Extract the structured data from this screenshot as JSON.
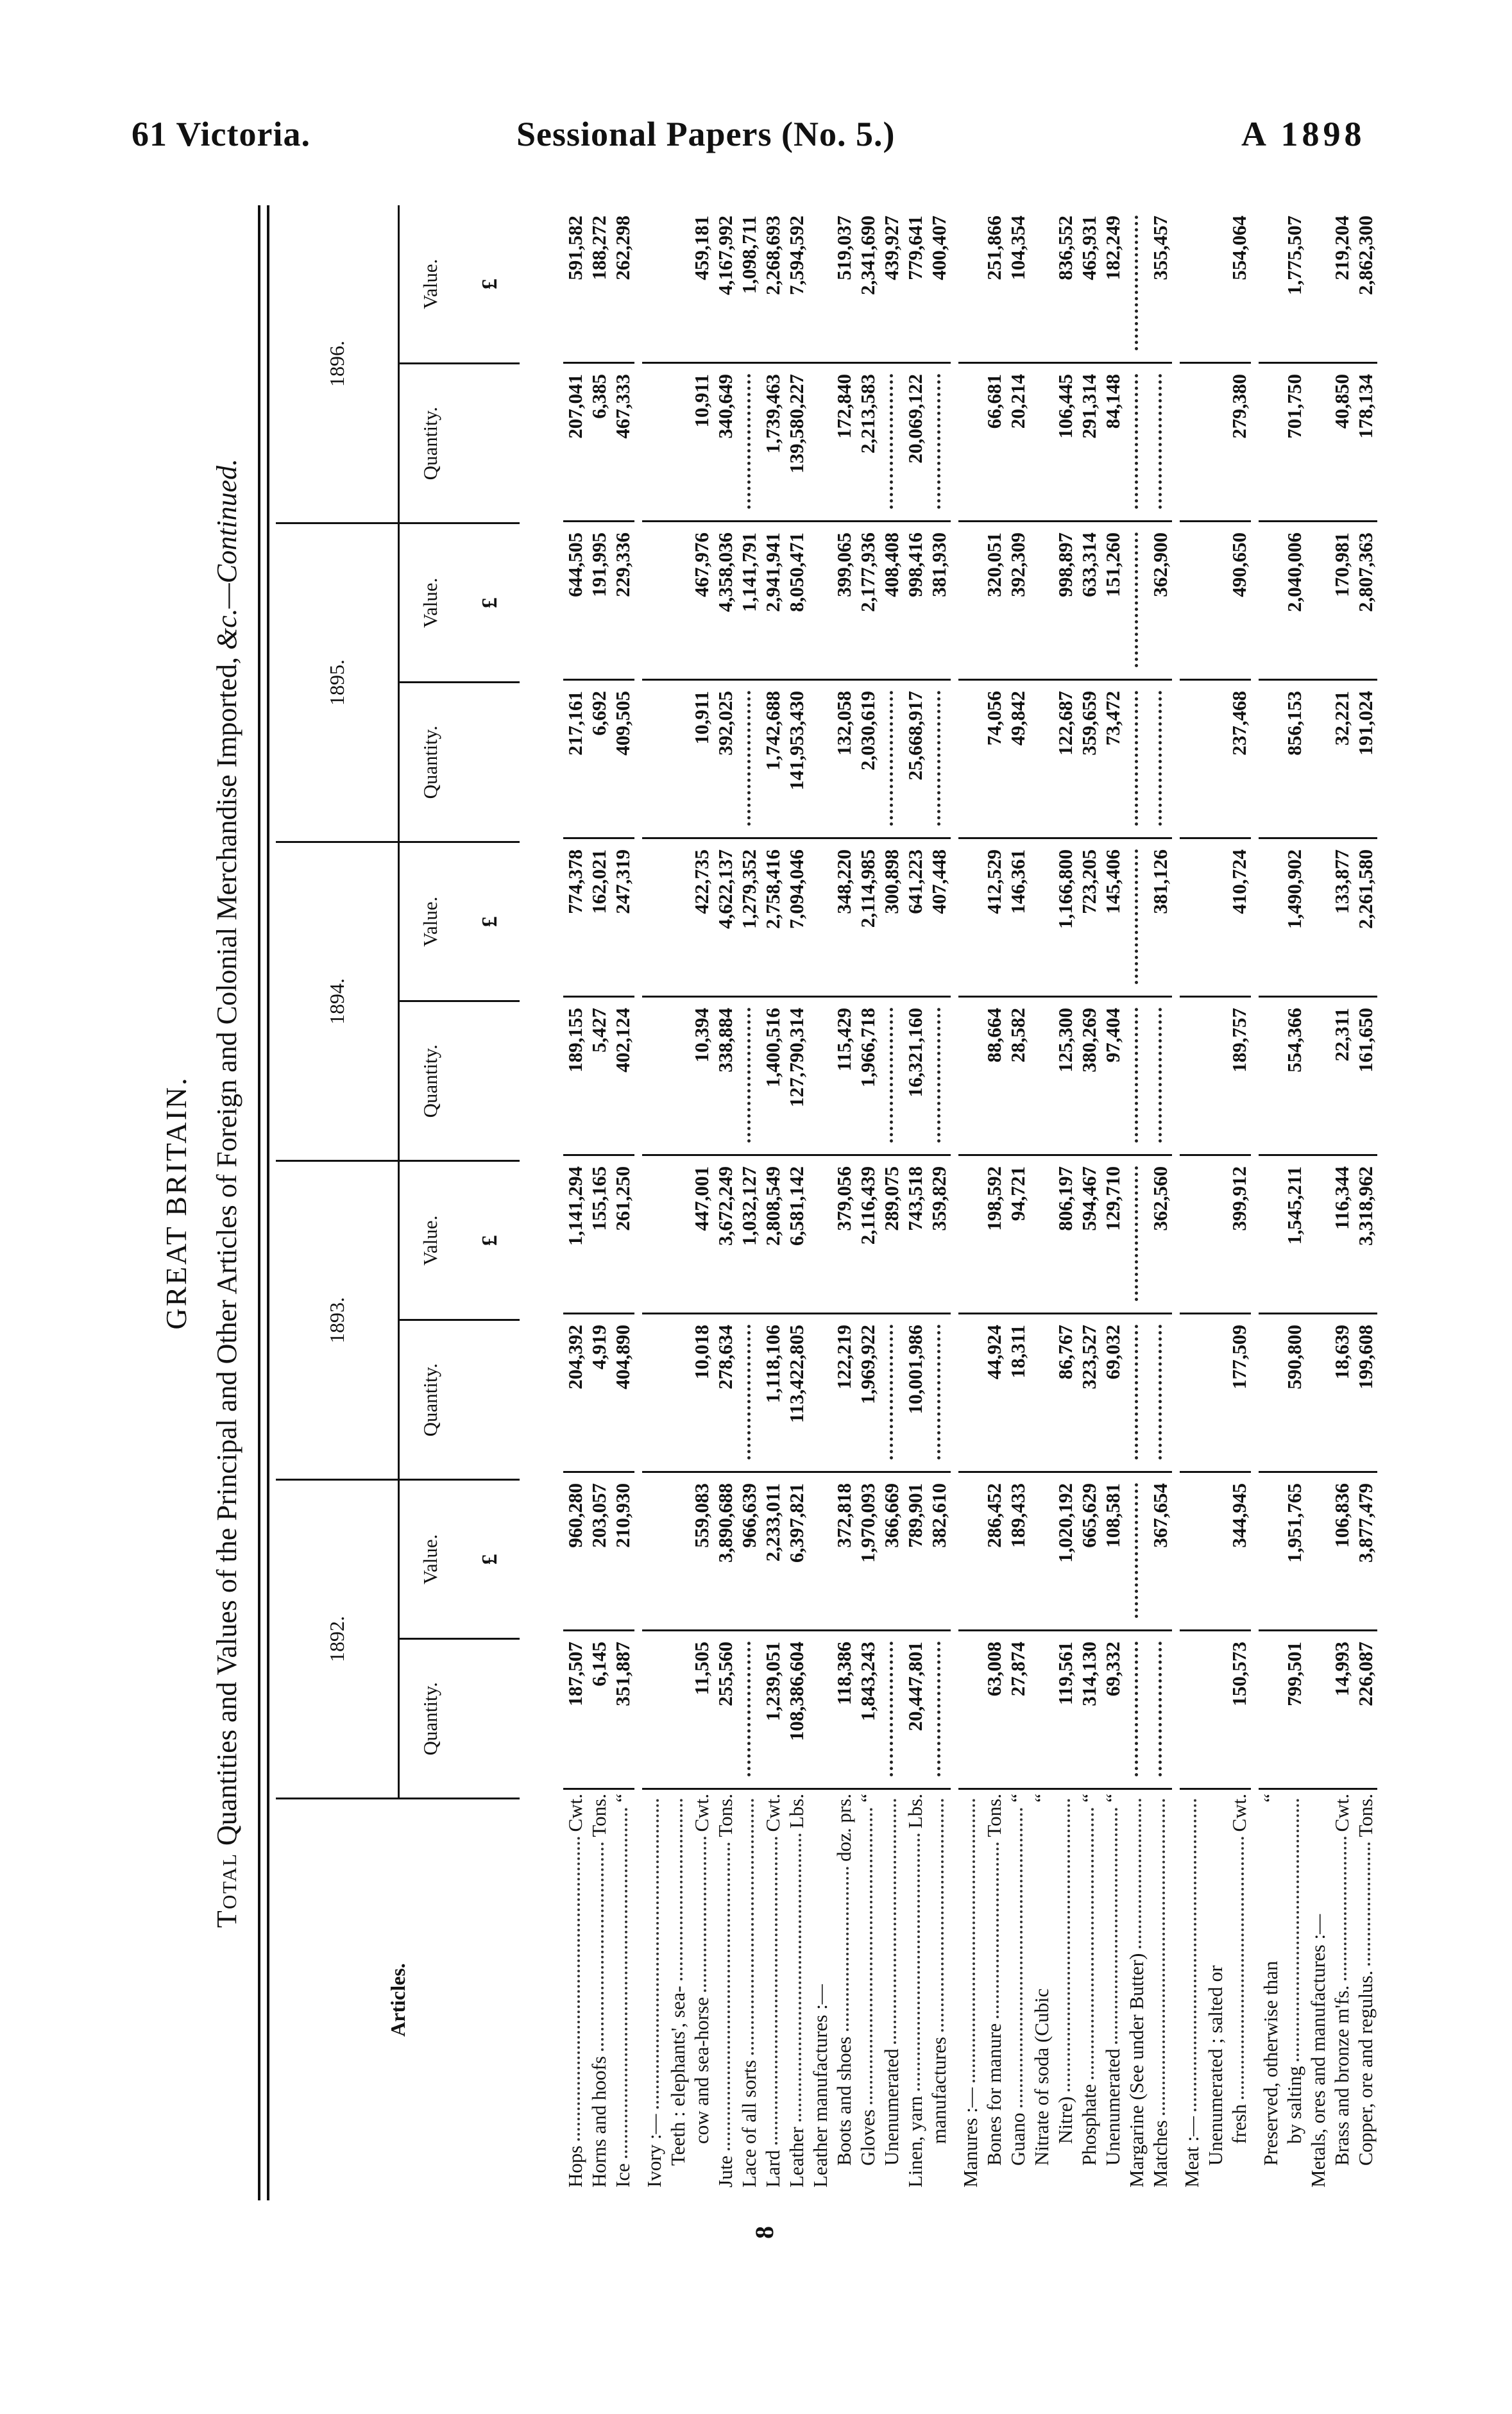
{
  "running_head": {
    "left": "61 Victoria.",
    "center": "Sessional Papers (No. 5.)",
    "right": "A 1898"
  },
  "heading": "GREAT BRITAIN.",
  "title": {
    "smallcaps": "Total",
    "main": " Quantities and Values of the Principal and Other Articles of Foreign and Colonial Merchandise Imported, ",
    "italic": "&c.—Continued."
  },
  "margin_mark": "8",
  "table": {
    "articles_header": "Articles.",
    "years": [
      "1892.",
      "1893.",
      "1894.",
      "1895.",
      "1896."
    ],
    "quantity_label": "Quantity.",
    "value_label": "Value.",
    "currency": "£",
    "rows": [
      {
        "article": "Hops",
        "unit": "Cwt.",
        "q": [
          "187,507",
          "204,392",
          "189,155",
          "217,161",
          "207,041"
        ],
        "v": [
          "960,280",
          "1,141,294",
          "774,378",
          "644,505",
          "591,582"
        ]
      },
      {
        "article": "Horns and hoofs",
        "unit": "Tons.",
        "q": [
          "6,145",
          "4,919",
          "5,427",
          "6,692",
          "6,385"
        ],
        "v": [
          "203,057",
          "155,165",
          "162,021",
          "191,995",
          "188,272"
        ]
      },
      {
        "article": "Ice",
        "unit": "“",
        "q": [
          "351,887",
          "404,890",
          "402,124",
          "409,505",
          "467,333"
        ],
        "v": [
          "210,930",
          "261,250",
          "247,319",
          "229,336",
          "262,298"
        ]
      },
      {
        "article": "Ivory :—",
        "gap": true
      },
      {
        "article": "Teeth : elephants', sea-",
        "indent": 1
      },
      {
        "article": "cow and sea-horse",
        "indent": 2,
        "unit": "Cwt.",
        "q": [
          "11,505",
          "10,018",
          "10,394",
          "10,911",
          "10,911"
        ],
        "v": [
          "559,083",
          "447,001",
          "422,735",
          "467,976",
          "459,181"
        ]
      },
      {
        "article": "Jute",
        "unit": "Tons.",
        "q": [
          "255,560",
          "278,634",
          "338,884",
          "392,025",
          "340,649"
        ],
        "v": [
          "3,890,688",
          "3,672,249",
          "4,622,137",
          "4,358,036",
          "4,167,992"
        ]
      },
      {
        "article": "Lace of all sorts",
        "q_dotted": true,
        "v": [
          "966,639",
          "1,032,127",
          "1,279,352",
          "1,141,791",
          "1,098,711"
        ]
      },
      {
        "article": "Lard",
        "unit": "Cwt.",
        "q": [
          "1,239,051",
          "1,118,106",
          "1,400,516",
          "1,742,688",
          "1,739,463"
        ],
        "v": [
          "2,233,011",
          "2,808,549",
          "2,758,416",
          "2,941,941",
          "2,268,693"
        ]
      },
      {
        "article": "Leather",
        "unit": "Lbs.",
        "q": [
          "108,386,604",
          "113,422,805",
          "127,790,314",
          "141,953,430",
          "139,580,227"
        ],
        "v": [
          "6,397,821",
          "6,581,142",
          "7,094,046",
          "8,050,471",
          "7,594,592"
        ]
      },
      {
        "article": "Leather manufactures :—",
        "no_leader": true
      },
      {
        "article": "Boots and shoes",
        "indent": 1,
        "unit": "doz. prs.",
        "q": [
          "118,386",
          "122,219",
          "115,429",
          "132,058",
          "172,840"
        ],
        "v": [
          "372,818",
          "379,056",
          "348,220",
          "399,065",
          "519,037"
        ]
      },
      {
        "article": "Gloves",
        "indent": 1,
        "unit": "“",
        "q": [
          "1,843,243",
          "1,969,922",
          "1,966,718",
          "2,030,619",
          "2,213,583"
        ],
        "v": [
          "1,970,093",
          "2,116,439",
          "2,114,985",
          "2,177,936",
          "2,341,690"
        ]
      },
      {
        "article": "Unenumerated",
        "indent": 1,
        "q_dotted": true,
        "v": [
          "366,669",
          "289,075",
          "300,898",
          "408,408",
          "439,927"
        ]
      },
      {
        "article": "Linen, yarn",
        "unit": "Lbs.",
        "q": [
          "20,447,801",
          "10,001,986",
          "16,321,160",
          "25,668,917",
          "20,069,122"
        ],
        "v": [
          "789,901",
          "743,518",
          "641,223",
          "998,416",
          "779,641"
        ]
      },
      {
        "article": "manufactures",
        "indent": 2,
        "q_dotted": true,
        "v": [
          "382,610",
          "359,829",
          "407,448",
          "381,930",
          "400,407"
        ]
      },
      {
        "article": "Manures :—",
        "gap": true
      },
      {
        "article": "Bones for manure",
        "indent": 1,
        "unit": "Tons.",
        "q": [
          "63,008",
          "44,924",
          "88,664",
          "74,056",
          "66,681"
        ],
        "v": [
          "286,452",
          "198,592",
          "412,529",
          "320,051",
          "251,866"
        ]
      },
      {
        "article": "Guano",
        "indent": 1,
        "unit": "“",
        "q": [
          "27,874",
          "18,311",
          "28,582",
          "49,842",
          "20,214"
        ],
        "v": [
          "189,433",
          "94,721",
          "146,361",
          "392,309",
          "104,354"
        ]
      },
      {
        "article": "Nitrate of soda (Cubic",
        "indent": 1,
        "unit": "“",
        "no_leader": true
      },
      {
        "article": "Nitre)",
        "indent": 2,
        "q": [
          "119,561",
          "86,767",
          "125,300",
          "122,687",
          "106,445"
        ],
        "v": [
          "1,020,192",
          "806,197",
          "1,166,800",
          "998,897",
          "836,552"
        ]
      },
      {
        "article": "Phosphate",
        "indent": 1,
        "unit": "“",
        "q": [
          "314,130",
          "323,527",
          "380,269",
          "359,659",
          "291,314"
        ],
        "v": [
          "665,629",
          "594,467",
          "723,205",
          "633,314",
          "465,931"
        ]
      },
      {
        "article": "Unenumerated",
        "indent": 1,
        "unit": "“",
        "q": [
          "69,332",
          "69,032",
          "97,404",
          "73,472",
          "84,148"
        ],
        "v": [
          "108,581",
          "129,710",
          "145,406",
          "151,260",
          "182,249"
        ]
      },
      {
        "article": "Margarine (See under Butter)",
        "q_dotted": true,
        "v_dotted": true
      },
      {
        "article": "Matches",
        "q_dotted": true,
        "v": [
          "367,654",
          "362,560",
          "381,126",
          "362,900",
          "355,457"
        ]
      },
      {
        "article": "Meat :—",
        "gap": true
      },
      {
        "article": "Unenumerated ; salted or",
        "indent": 1,
        "no_leader": true
      },
      {
        "article": "fresh",
        "indent": 2,
        "unit": "Cwt.",
        "q": [
          "150,573",
          "177,509",
          "189,757",
          "237,468",
          "279,380"
        ],
        "v": [
          "344,945",
          "399,912",
          "410,724",
          "490,650",
          "554,064"
        ]
      },
      {
        "article": "Preserved, otherwise than",
        "indent": 1,
        "unit": "“",
        "no_leader": true,
        "gap": true
      },
      {
        "article": "by salting",
        "indent": 2,
        "q": [
          "799,501",
          "590,800",
          "554,366",
          "856,153",
          "701,750"
        ],
        "v": [
          "1,951,765",
          "1,545,211",
          "1,490,902",
          "2,040,006",
          "1,775,507"
        ]
      },
      {
        "article": "Metals, ores and manufactures :—",
        "no_leader": true
      },
      {
        "article": "Brass and bronze m'fs.",
        "indent": 1,
        "unit": "Cwt.",
        "q": [
          "14,993",
          "18,639",
          "22,311",
          "32,221",
          "40,850"
        ],
        "v": [
          "106,836",
          "116,344",
          "133,877",
          "170,981",
          "219,204"
        ]
      },
      {
        "article": "Copper, ore and regulus.",
        "indent": 1,
        "unit": "Tons.",
        "q": [
          "226,087",
          "199,608",
          "161,650",
          "191,024",
          "178,134"
        ],
        "v": [
          "3,877,479",
          "3,318,962",
          "2,261,580",
          "2,807,363",
          "2,862,300"
        ]
      }
    ]
  }
}
